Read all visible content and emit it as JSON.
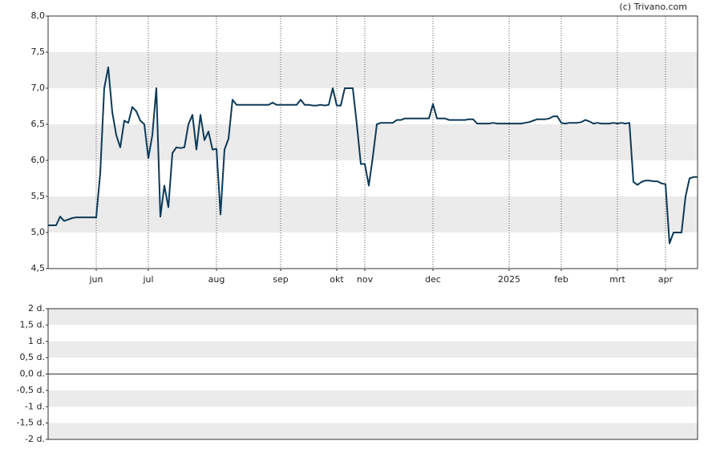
{
  "credit": "(c) Trivano.com",
  "chart_data": [
    {
      "type": "line",
      "categories": [
        null,
        null,
        null,
        null,
        null,
        null,
        null,
        null,
        null,
        null,
        null,
        null,
        "jun",
        null,
        null,
        null,
        null,
        null,
        null,
        null,
        null,
        null,
        null,
        null,
        null,
        "jul",
        null,
        null,
        null,
        null,
        null,
        null,
        null,
        null,
        null,
        null,
        null,
        null,
        null,
        null,
        null,
        null,
        "aug",
        null,
        null,
        null,
        null,
        null,
        null,
        null,
        null,
        null,
        null,
        null,
        null,
        null,
        null,
        null,
        "sep",
        null,
        null,
        null,
        null,
        null,
        null,
        null,
        null,
        null,
        null,
        null,
        null,
        null,
        "okt",
        null,
        null,
        null,
        null,
        null,
        null,
        "nov",
        null,
        null,
        null,
        null,
        null,
        null,
        null,
        null,
        null,
        null,
        null,
        null,
        null,
        null,
        null,
        null,
        "dec",
        null,
        null,
        null,
        null,
        null,
        null,
        null,
        null,
        null,
        null,
        null,
        null,
        null,
        null,
        null,
        null,
        null,
        null,
        "2025",
        null,
        null,
        null,
        null,
        null,
        null,
        null,
        null,
        null,
        null,
        null,
        null,
        "feb",
        null,
        null,
        null,
        null,
        null,
        null,
        null,
        null,
        null,
        null,
        null,
        null,
        null,
        "mrt",
        null,
        null,
        null,
        null,
        null,
        null,
        null,
        null,
        null,
        null,
        null,
        "apr",
        null,
        null,
        null,
        null,
        null,
        null,
        null,
        null
      ],
      "values": [
        5.1,
        5.1,
        5.1,
        5.22,
        5.16,
        5.18,
        5.2,
        5.21,
        5.21,
        5.21,
        5.21,
        5.21,
        5.21,
        5.82,
        7.0,
        7.29,
        6.67,
        6.35,
        6.18,
        6.55,
        6.52,
        6.74,
        6.68,
        6.55,
        6.5,
        6.03,
        6.35,
        7.0,
        5.22,
        5.65,
        5.35,
        6.1,
        6.18,
        6.17,
        6.18,
        6.5,
        6.63,
        6.15,
        6.63,
        6.28,
        6.4,
        6.15,
        6.16,
        5.25,
        6.15,
        6.3,
        6.84,
        6.77,
        6.77,
        6.77,
        6.77,
        6.77,
        6.77,
        6.77,
        6.77,
        6.77,
        6.8,
        6.77,
        6.77,
        6.77,
        6.77,
        6.77,
        6.77,
        6.84,
        6.77,
        6.77,
        6.76,
        6.76,
        6.77,
        6.76,
        6.77,
        7.0,
        6.76,
        6.76,
        7.0,
        7.0,
        7.0,
        6.5,
        5.95,
        5.95,
        5.65,
        6.05,
        6.5,
        6.52,
        6.52,
        6.52,
        6.52,
        6.56,
        6.56,
        6.58,
        6.58,
        6.58,
        6.58,
        6.58,
        6.58,
        6.58,
        6.78,
        6.58,
        6.58,
        6.58,
        6.56,
        6.56,
        6.56,
        6.56,
        6.56,
        6.57,
        6.57,
        6.51,
        6.51,
        6.51,
        6.51,
        6.52,
        6.51,
        6.51,
        6.51,
        6.51,
        6.51,
        6.51,
        6.51,
        6.52,
        6.53,
        6.55,
        6.57,
        6.57,
        6.57,
        6.58,
        6.61,
        6.61,
        6.52,
        6.51,
        6.52,
        6.52,
        6.52,
        6.53,
        6.56,
        6.54,
        6.51,
        6.52,
        6.51,
        6.51,
        6.51,
        6.52,
        6.51,
        6.52,
        6.51,
        6.52,
        5.7,
        5.66,
        5.7,
        5.72,
        5.72,
        5.71,
        5.71,
        5.68,
        5.67,
        4.85,
        5.0,
        5.0,
        5.0,
        5.5,
        5.75,
        5.77,
        5.77
      ],
      "color": "#0d3a56",
      "ylim": [
        4.5,
        8.0
      ],
      "yticks": [
        {
          "value": 4.5,
          "label": "4,5"
        },
        {
          "value": 5.0,
          "label": "5,0"
        },
        {
          "value": 5.5,
          "label": "5,5"
        },
        {
          "value": 6.0,
          "label": "6,0"
        },
        {
          "value": 6.5,
          "label": "6,5"
        },
        {
          "value": 7.0,
          "label": "7,0"
        },
        {
          "value": 7.5,
          "label": "7,5"
        },
        {
          "value": 8.0,
          "label": "8,0"
        }
      ]
    },
    {
      "type": "line",
      "ylim": [
        -2,
        2
      ],
      "yticks": [
        {
          "value": -2,
          "label": "-2 d."
        },
        {
          "value": -1.5,
          "label": "-1,5 d."
        },
        {
          "value": -1,
          "label": "-1 d."
        },
        {
          "value": -0.5,
          "label": "-0,5 d."
        },
        {
          "value": 0,
          "label": "0,0 d."
        },
        {
          "value": 0.5,
          "label": "0,5 d."
        },
        {
          "value": 1,
          "label": "1 d."
        },
        {
          "value": 1.5,
          "label": "1,5 d."
        },
        {
          "value": 2,
          "label": "2 d."
        }
      ]
    }
  ]
}
